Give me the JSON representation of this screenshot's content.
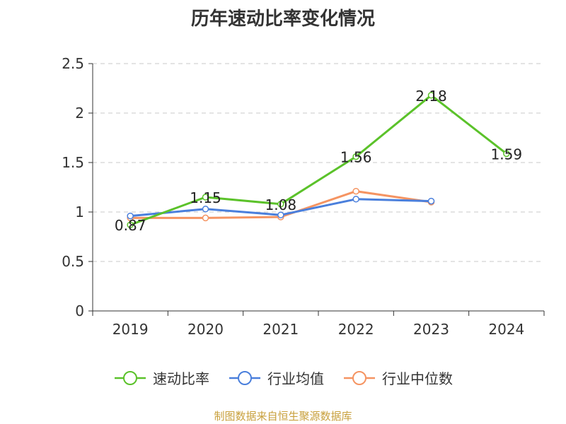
{
  "title": "历年速动比率变化情况",
  "source_note": "制图数据来自恒生聚源数据库",
  "chart_data": {
    "type": "line",
    "title": "历年速动比率变化情况",
    "categories": [
      "2019",
      "2020",
      "2021",
      "2022",
      "2023",
      "2024"
    ],
    "ylim": [
      0,
      2.5
    ],
    "yticks": [
      "0",
      "0.5",
      "1",
      "1.5",
      "2",
      "2.5"
    ],
    "grid": true,
    "legend_position": "bottom",
    "series": [
      {
        "name": "速动比率",
        "color": "#5bc22a",
        "values": [
          0.87,
          1.15,
          1.08,
          1.56,
          2.18,
          1.59
        ],
        "labels": [
          "0.87",
          "1.15",
          "1.08",
          "1.56",
          "2.18",
          "1.59"
        ]
      },
      {
        "name": "行业均值",
        "color": "#4a7fdc",
        "values": [
          0.96,
          1.03,
          0.97,
          1.13,
          1.11,
          null
        ]
      },
      {
        "name": "行业中位数",
        "color": "#f59462",
        "values": [
          0.94,
          0.94,
          0.95,
          1.21,
          1.1,
          null
        ]
      }
    ]
  }
}
